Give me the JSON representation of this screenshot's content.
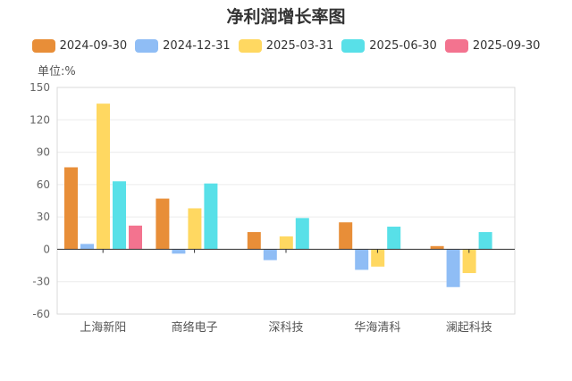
{
  "chart_data": {
    "type": "bar",
    "title": "净利润增长率图",
    "unit_label": "单位:%",
    "categories": [
      "上海新阳",
      "商络电子",
      "深科技",
      "华海清科",
      "澜起科技"
    ],
    "series": [
      {
        "name": "2024-09-30",
        "color": "#E88E38",
        "values": [
          76,
          47,
          16,
          25,
          3
        ]
      },
      {
        "name": "2024-12-31",
        "color": "#8FBDF5",
        "values": [
          5,
          -4,
          -10,
          -19,
          -35
        ]
      },
      {
        "name": "2025-03-31",
        "color": "#FFD861",
        "values": [
          135,
          38,
          12,
          -16,
          -22
        ]
      },
      {
        "name": "2025-06-30",
        "color": "#58E0E8",
        "values": [
          63,
          61,
          29,
          21,
          16
        ]
      },
      {
        "name": "2025-09-30",
        "color": "#F3738F",
        "values": [
          22,
          null,
          null,
          null,
          null
        ]
      }
    ],
    "ylim": [
      -60,
      150
    ],
    "yticks": [
      -60,
      -30,
      0,
      30,
      60,
      90,
      120,
      150
    ],
    "grid": true,
    "legend_position": "top-center",
    "xlabel": "",
    "ylabel": ""
  }
}
